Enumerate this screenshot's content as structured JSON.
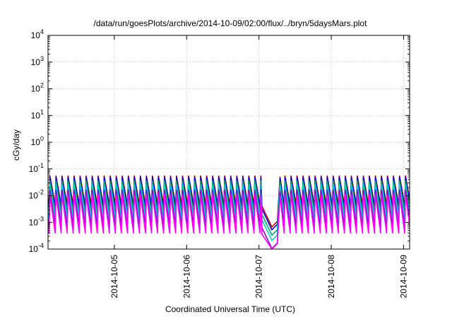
{
  "chart_data": {
    "type": "line",
    "title": "/data/run/goesPlots/archive/2014-10-09/02:00/flux/../bryn/5daysMars.plot",
    "xlabel": "Coordinated Universal Time (UTC)",
    "ylabel": "cGy/day",
    "yscale": "log",
    "ylim": [
      0.0001,
      10000
    ],
    "xlim": [
      "2014-10-04 02:00",
      "2014-10-09 02:00"
    ],
    "grid": true,
    "x_ticks": [
      "2014-10-05",
      "2014-10-06",
      "2014-10-07",
      "2014-10-08",
      "2014-10-09"
    ],
    "y_ticks": [
      {
        "base": "10",
        "exp": "-4"
      },
      {
        "base": "10",
        "exp": "-3"
      },
      {
        "base": "10",
        "exp": "-2"
      },
      {
        "base": "10",
        "exp": "-1"
      },
      {
        "base": "10",
        "exp": "0"
      },
      {
        "base": "10",
        "exp": "1"
      },
      {
        "base": "10",
        "exp": "2"
      },
      {
        "base": "10",
        "exp": "3"
      },
      {
        "base": "10",
        "exp": "4"
      }
    ],
    "cycles_per_day": 12,
    "gap": {
      "start": "2014-10-07 01:00",
      "end": "2014-10-07 07:00",
      "min_value": 0.0001
    },
    "series": [
      {
        "color": "#cc0000",
        "peak": 0.055,
        "trough": 0.0045
      },
      {
        "color": "#0000cc",
        "peak": 0.05,
        "trough": 0.0035
      },
      {
        "color": "#00aa66",
        "peak": 0.036,
        "trough": 0.0022
      },
      {
        "color": "#00cccc",
        "peak": 0.026,
        "trough": 0.0014
      },
      {
        "color": "#8800cc",
        "peak": 0.016,
        "trough": 0.0007
      },
      {
        "color": "#ff00ff",
        "peak": 0.011,
        "trough": 0.0004
      }
    ]
  }
}
